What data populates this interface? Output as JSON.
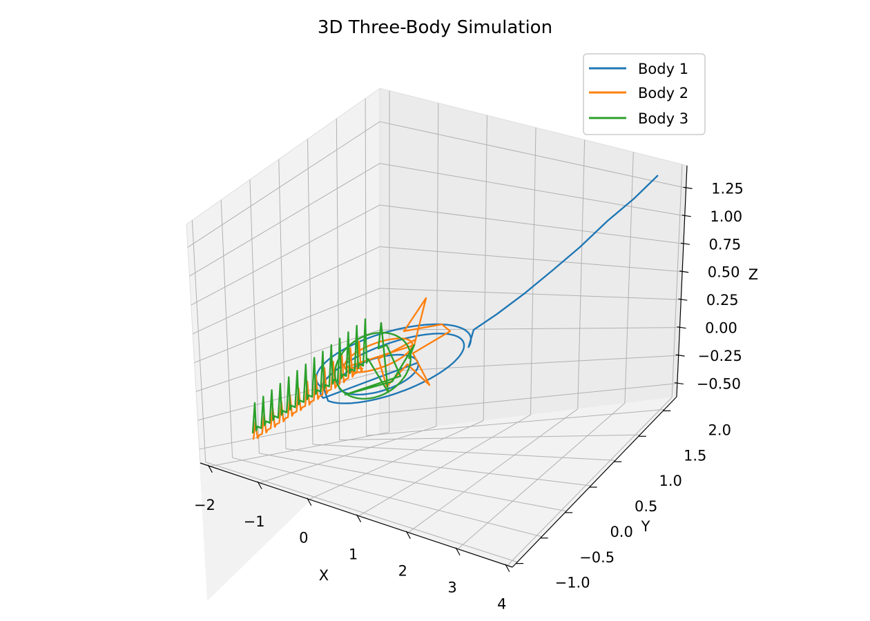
{
  "chart_data": {
    "type": "line",
    "projection": "3d",
    "title": "3D Three-Body Simulation",
    "xlabel": "X",
    "ylabel": "Y",
    "zlabel": "Z",
    "xlim": [
      -2.2,
      4.1
    ],
    "ylim": [
      -1.1,
      2.25
    ],
    "zlim": [
      -0.62,
      1.45
    ],
    "x_ticks": [
      "−2",
      "−1",
      "0",
      "1",
      "2",
      "3",
      "4"
    ],
    "y_ticks": [
      "−1.0",
      "−0.5",
      "0.0",
      "0.5",
      "1.0",
      "1.5",
      "2.0"
    ],
    "z_ticks": [
      "−0.50",
      "−0.25",
      "0.00",
      "0.25",
      "0.50",
      "0.75",
      "1.00",
      "1.25"
    ],
    "grid": true,
    "legend_position": "top-right",
    "series": [
      {
        "name": "Body 1",
        "color": "#1f77b4"
      },
      {
        "name": "Body 2",
        "color": "#ff7f0e"
      },
      {
        "name": "Body 3",
        "color": "#2ca02c"
      }
    ]
  }
}
